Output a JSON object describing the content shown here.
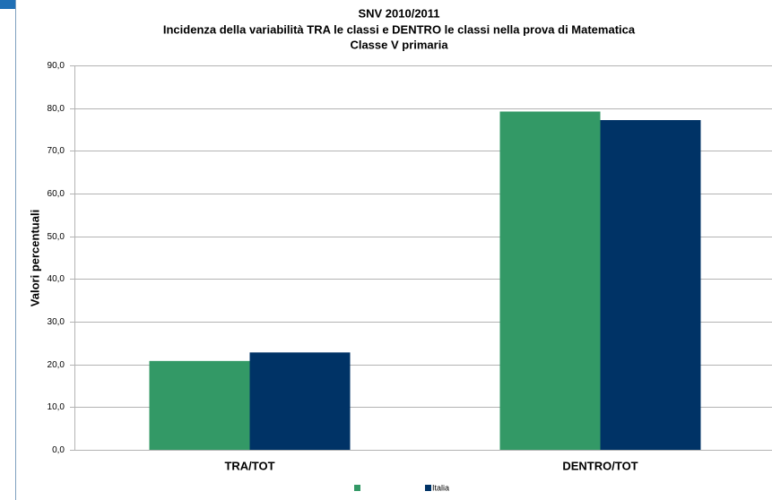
{
  "chart_data": {
    "type": "bar",
    "title": "SNV 2010/2011",
    "subtitle": [
      "Incidenza della variabilità  TRA le classi e DENTRO le classi nella prova di Matematica",
      "Classe V primaria"
    ],
    "y_label": "Valori percentuali",
    "categories": [
      "TRA/TOT",
      "DENTRO/TOT"
    ],
    "series": [
      {
        "name": null,
        "color": "#339966",
        "values": [
          20.8,
          79.2
        ]
      },
      {
        "name": "Italia",
        "color": "#003366",
        "values": [
          22.8,
          77.2
        ]
      }
    ],
    "ylim": [
      0,
      90
    ],
    "yticks": [
      {
        "value": 0,
        "label": "0,0"
      },
      {
        "value": 10,
        "label": "10,0"
      },
      {
        "value": 20,
        "label": "20,0"
      },
      {
        "value": 30,
        "label": "30,0"
      },
      {
        "value": 40,
        "label": "40,0"
      },
      {
        "value": 50,
        "label": "50,0"
      },
      {
        "value": 60,
        "label": "60,0"
      },
      {
        "value": 70,
        "label": "70,0"
      },
      {
        "value": 80,
        "label": "80,0"
      },
      {
        "value": 90,
        "label": "90,0"
      }
    ],
    "grid": true
  }
}
